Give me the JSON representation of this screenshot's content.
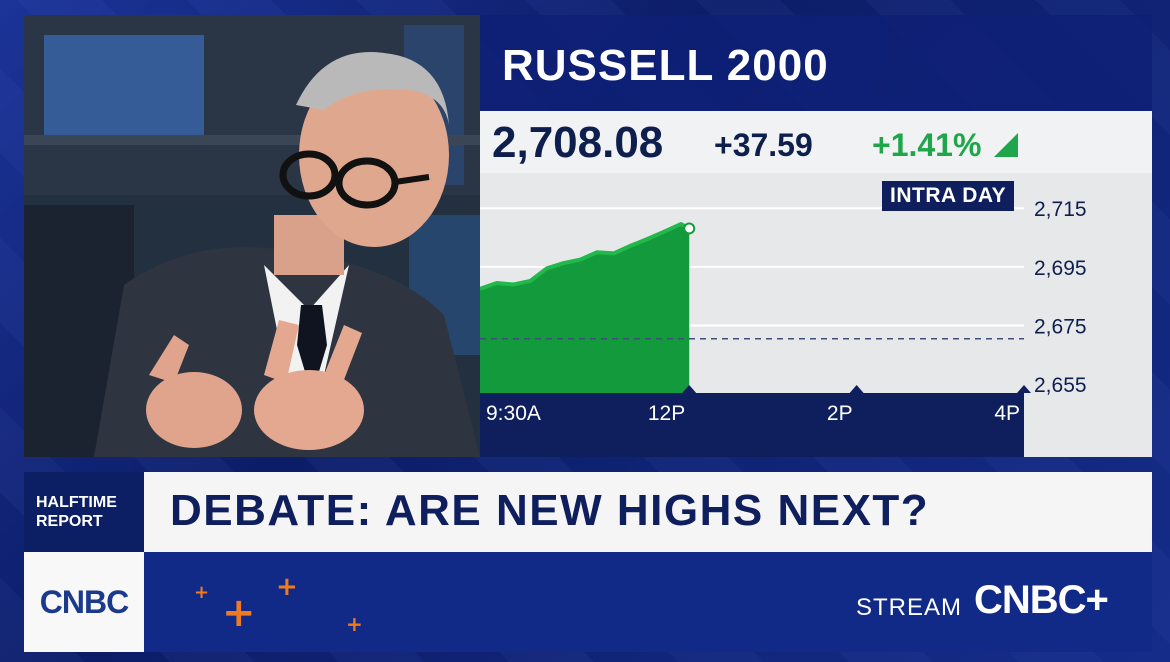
{
  "chart": {
    "title": "RUSSELL 2000",
    "price": "2,708.08",
    "change": "+37.59",
    "percent": "+1.41%",
    "badge": "INTRA DAY",
    "up_color": "#1fa64a"
  },
  "chart_data": {
    "type": "area",
    "title": "RUSSELL 2000",
    "x_tick_labels": [
      "9:30A",
      "12P",
      "2P",
      "4P"
    ],
    "y_tick_labels": [
      "2,715",
      "2,695",
      "2,675",
      "2,655"
    ],
    "ylim": [
      2655,
      2715
    ],
    "previous_close": 2670.49,
    "x_hours": [
      9.5,
      9.7,
      9.9,
      10.1,
      10.3,
      10.5,
      10.7,
      10.9,
      11.1,
      11.3,
      11.5,
      11.7,
      11.9,
      12.0
    ],
    "values": [
      2687.5,
      2689.5,
      2689.0,
      2690.2,
      2694.5,
      2696.3,
      2697.5,
      2700.0,
      2699.6,
      2702.2,
      2704.5,
      2707.0,
      2709.6,
      2708.1
    ],
    "grid": true
  },
  "lower_third": {
    "show_line1": "HALFTIME",
    "show_line2": "REPORT",
    "headline": "DEBATE: ARE NEW HIGHS NEXT?"
  },
  "bottom": {
    "logo": "CNBC",
    "stream": "STREAM",
    "stream_brand": "CNBC+"
  }
}
